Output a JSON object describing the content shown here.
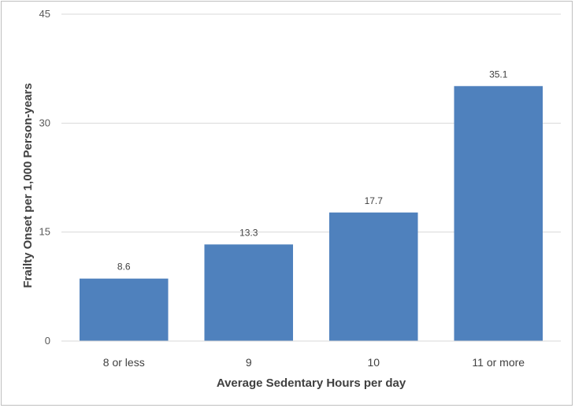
{
  "chart_data": {
    "type": "bar",
    "categories": [
      "8 or less",
      "9",
      "10",
      "11 or more"
    ],
    "values": [
      8.6,
      13.3,
      17.7,
      35.1
    ],
    "data_labels": [
      "8.6",
      "13.3",
      "17.7",
      "35.1"
    ],
    "title": "",
    "xlabel": "Average Sedentary Hours per day",
    "ylabel": "Frailty Onset per 1,000 Person-years",
    "ylim": [
      0,
      45
    ],
    "yticks": [
      0,
      15,
      30,
      45
    ],
    "ytick_labels": [
      "0",
      "15",
      "30",
      "45"
    ],
    "grid": true,
    "legend": "none",
    "bar_color": "#4f81bd",
    "grid_color": "#d9d9d9"
  }
}
